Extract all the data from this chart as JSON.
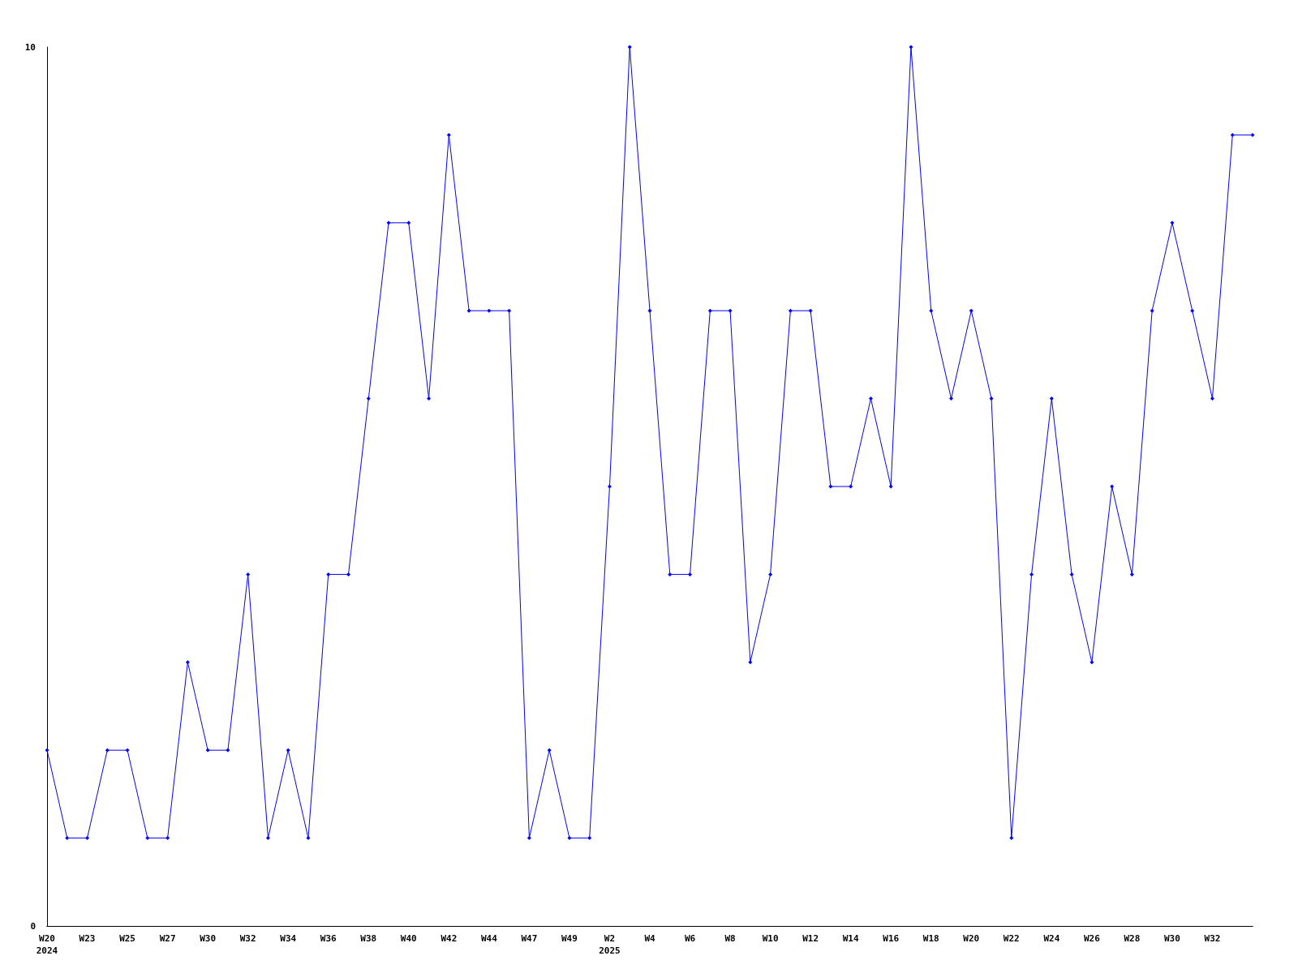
{
  "chart_data": {
    "type": "line",
    "categories": [
      "W20\n2024",
      null,
      "W23",
      null,
      "W25",
      null,
      "W27",
      null,
      "W30",
      null,
      "W32",
      null,
      "W34",
      null,
      "W36",
      null,
      "W38",
      null,
      "W40",
      null,
      "W42",
      null,
      "W44",
      null,
      "W47",
      null,
      "W49",
      null,
      "W2\n2025",
      null,
      "W4",
      null,
      "W6",
      null,
      "W8",
      null,
      "W10",
      null,
      "W12",
      null,
      "W14",
      null,
      "W16",
      null,
      "W18",
      null,
      "W20",
      null,
      "W22",
      null,
      "W24",
      null,
      "W26",
      null,
      "W28",
      null,
      "W30",
      null,
      "W32",
      null,
      null
    ],
    "series": [
      {
        "color": "#0000ff",
        "values": [
          2,
          1,
          1,
          2,
          2,
          1,
          1,
          3,
          2,
          2,
          4,
          1,
          2,
          1,
          4,
          4,
          6,
          8,
          8,
          6,
          9,
          7,
          7,
          7,
          1,
          2,
          1,
          1,
          5,
          10,
          7,
          4,
          4,
          7,
          7,
          3,
          4,
          7,
          7,
          5,
          5,
          6,
          5,
          10,
          7,
          6,
          7,
          6,
          1,
          4,
          6,
          4,
          3,
          5,
          4,
          7,
          8,
          7,
          6,
          9,
          9
        ]
      }
    ],
    "ylim": [
      0,
      10
    ],
    "yticks": [
      0,
      10
    ],
    "marker": "diamond",
    "line_style": "solid"
  }
}
